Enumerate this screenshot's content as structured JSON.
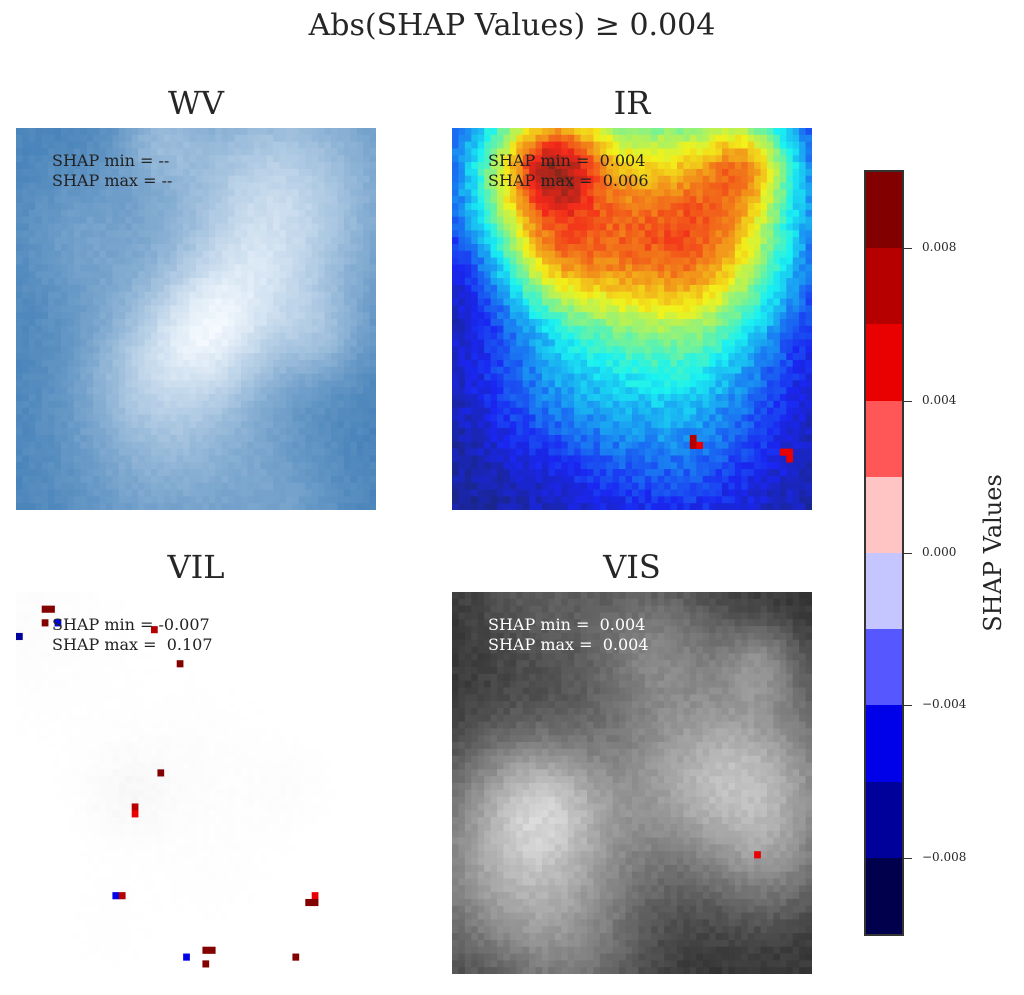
{
  "suptitle": "Abs(SHAP Values) ≥ 0.004",
  "panels": [
    {
      "id": "WV",
      "title": "WV",
      "shap_min_label": "SHAP min = --",
      "shap_max_label": "SHAP max = --",
      "base": "blues"
    },
    {
      "id": "IR",
      "title": "IR",
      "shap_min_label": "SHAP min =  0.004",
      "shap_max_label": "SHAP max =  0.006",
      "base": "jet"
    },
    {
      "id": "VIL",
      "title": "VIL",
      "shap_min_label": "SHAP min = -0.007",
      "shap_max_label": "SHAP max =  0.107",
      "base": "white"
    },
    {
      "id": "VIS",
      "title": "VIS",
      "shap_min_label": "SHAP min =  0.004",
      "shap_max_label": "SHAP max =  0.004",
      "base": "gray"
    }
  ],
  "colorbar": {
    "label": "SHAP Values",
    "vmin": -0.01,
    "vmax": 0.01,
    "ticks": [
      -0.008,
      -0.004,
      0.0,
      0.004,
      0.008
    ],
    "tick_labels": [
      "−0.008",
      "−0.004",
      "0.000",
      "0.004",
      "0.008"
    ],
    "colors": [
      "#00004c",
      "#00009b",
      "#0000e9",
      "#5757ff",
      "#c5c5ff",
      "#ffc5c5",
      "#ff5757",
      "#e90000",
      "#b60000",
      "#830000"
    ]
  },
  "chart_data": {
    "type": "heatmap",
    "title": "Abs(SHAP Values) ≥ 0.004",
    "subplots": [
      "WV",
      "IR",
      "VIL",
      "VIS"
    ],
    "colorbar_label": "SHAP Values",
    "colorbar_range": [
      -0.01,
      0.01
    ],
    "highlighted_cells": {
      "WV": [],
      "IR": [
        {
          "row": 45,
          "col": 37,
          "value": 0.006
        },
        {
          "row": 46,
          "col": 37,
          "value": 0.006
        },
        {
          "row": 46,
          "col": 38,
          "value": 0.005
        },
        {
          "row": 47,
          "col": 51,
          "value": 0.005
        },
        {
          "row": 47,
          "col": 52,
          "value": 0.005
        },
        {
          "row": 48,
          "col": 52,
          "value": 0.004
        }
      ],
      "VIL": [
        {
          "row": 2,
          "col": 4,
          "value": 0.107
        },
        {
          "row": 2,
          "col": 5,
          "value": 0.012
        },
        {
          "row": 4,
          "col": 4,
          "value": 0.01
        },
        {
          "row": 4,
          "col": 6,
          "value": -0.006
        },
        {
          "row": 6,
          "col": 0,
          "value": -0.007
        },
        {
          "row": 5,
          "col": 21,
          "value": 0.007
        },
        {
          "row": 10,
          "col": 25,
          "value": 0.012
        },
        {
          "row": 26,
          "col": 22,
          "value": 0.01
        },
        {
          "row": 31,
          "col": 18,
          "value": 0.006
        },
        {
          "row": 32,
          "col": 18,
          "value": 0.005
        },
        {
          "row": 44,
          "col": 15,
          "value": -0.006
        },
        {
          "row": 44,
          "col": 16,
          "value": 0.006
        },
        {
          "row": 44,
          "col": 46,
          "value": 0.005
        },
        {
          "row": 45,
          "col": 45,
          "value": 0.01
        },
        {
          "row": 45,
          "col": 46,
          "value": 0.01
        },
        {
          "row": 52,
          "col": 29,
          "value": 0.01
        },
        {
          "row": 52,
          "col": 30,
          "value": 0.01
        },
        {
          "row": 53,
          "col": 26,
          "value": -0.005
        },
        {
          "row": 53,
          "col": 43,
          "value": 0.01
        },
        {
          "row": 54,
          "col": 29,
          "value": 0.012
        }
      ],
      "VIS": [
        {
          "row": 38,
          "col": 47,
          "value": 0.004
        }
      ]
    }
  }
}
